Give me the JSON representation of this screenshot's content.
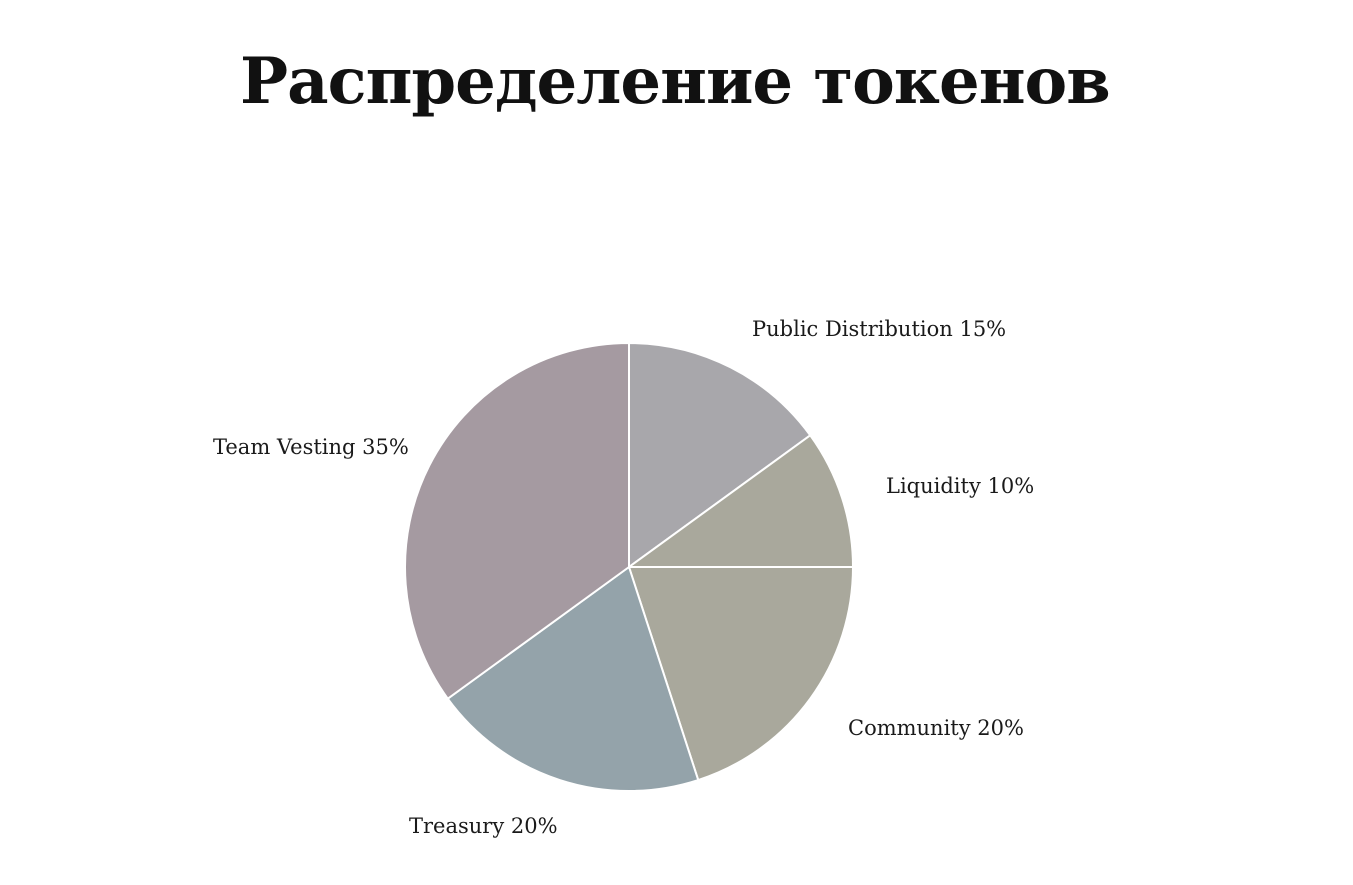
{
  "title": "Распределение токенов",
  "chart_data": {
    "type": "pie",
    "title": "Распределение токенов",
    "start_angle_deg": 0,
    "direction": "clockwise",
    "slices": [
      {
        "label": "Public Distribution",
        "value": 15,
        "display": "Public Distribution 15%",
        "color": "#a8a7ab"
      },
      {
        "label": "Liquidity",
        "value": 10,
        "display": "Liquidity 10%",
        "color": "#a9a89c"
      },
      {
        "label": "Community",
        "value": 20,
        "display": "Community 20%",
        "color": "#a9a89c"
      },
      {
        "label": "Treasury",
        "value": 20,
        "display": "Treasury 20%",
        "color": "#94a3aa"
      },
      {
        "label": "Team Vesting",
        "value": 35,
        "display": "Team Vesting 35%",
        "color": "#a59aa1"
      }
    ],
    "slice_border_color": "#ffffff"
  }
}
